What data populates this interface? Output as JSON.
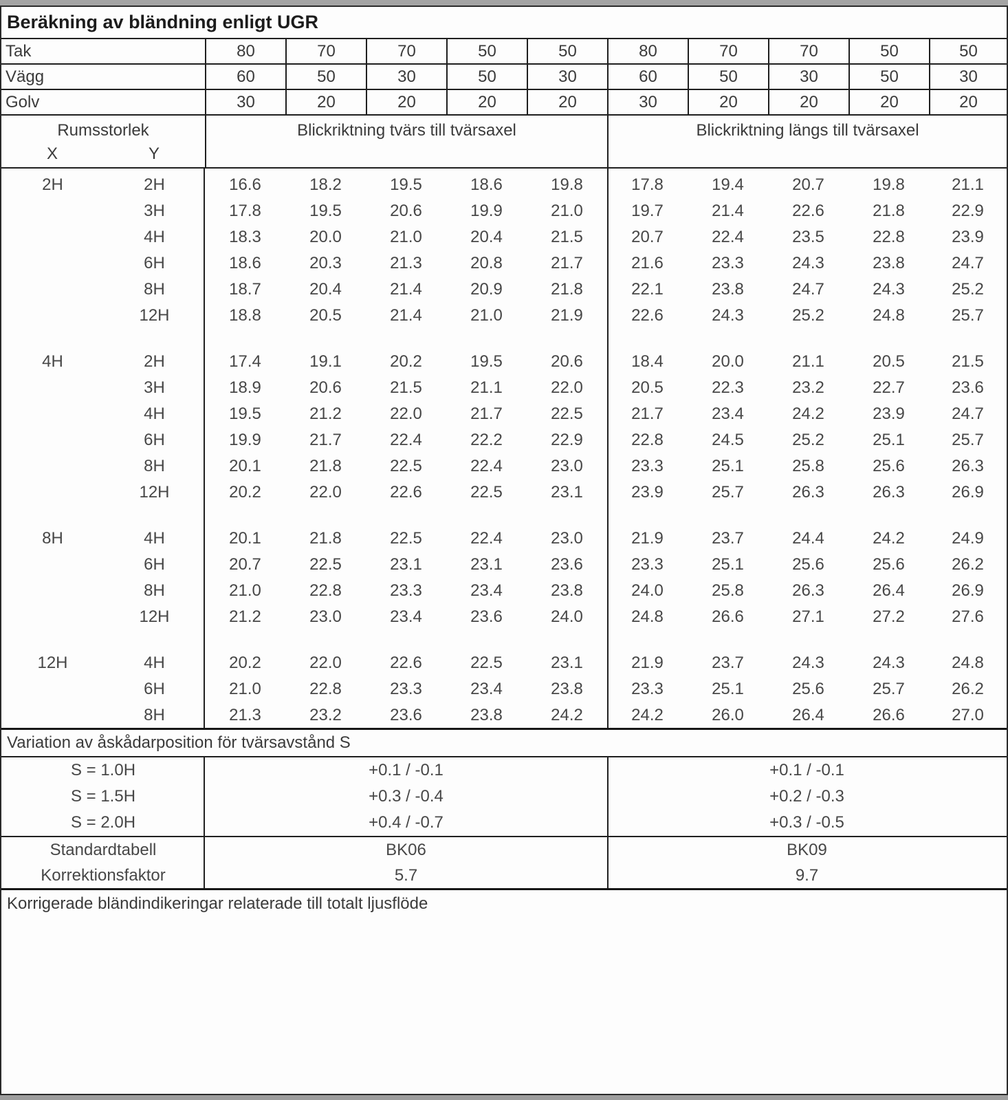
{
  "title": "Beräkning av bländning enligt UGR",
  "surface_rows": [
    {
      "label": "Tak",
      "values": [
        "80",
        "70",
        "70",
        "50",
        "50",
        "80",
        "70",
        "70",
        "50",
        "50"
      ]
    },
    {
      "label": "Vägg",
      "values": [
        "60",
        "50",
        "30",
        "50",
        "30",
        "60",
        "50",
        "30",
        "50",
        "30"
      ]
    },
    {
      "label": "Golv",
      "values": [
        "30",
        "20",
        "20",
        "20",
        "20",
        "30",
        "20",
        "20",
        "20",
        "20"
      ]
    }
  ],
  "room_header": {
    "label": "Rumsstorlek",
    "x": "X",
    "y": "Y",
    "group_tvars": "Blickriktning tvärs till tvärsaxel",
    "group_langs": "Blickriktning längs till tvärsaxel"
  },
  "ugr_blocks": [
    {
      "x": "2H",
      "rows": [
        {
          "y": "2H",
          "tvars": [
            "16.6",
            "18.2",
            "19.5",
            "18.6",
            "19.8"
          ],
          "langs": [
            "17.8",
            "19.4",
            "20.7",
            "19.8",
            "21.1"
          ]
        },
        {
          "y": "3H",
          "tvars": [
            "17.8",
            "19.5",
            "20.6",
            "19.9",
            "21.0"
          ],
          "langs": [
            "19.7",
            "21.4",
            "22.6",
            "21.8",
            "22.9"
          ]
        },
        {
          "y": "4H",
          "tvars": [
            "18.3",
            "20.0",
            "21.0",
            "20.4",
            "21.5"
          ],
          "langs": [
            "20.7",
            "22.4",
            "23.5",
            "22.8",
            "23.9"
          ]
        },
        {
          "y": "6H",
          "tvars": [
            "18.6",
            "20.3",
            "21.3",
            "20.8",
            "21.7"
          ],
          "langs": [
            "21.6",
            "23.3",
            "24.3",
            "23.8",
            "24.7"
          ]
        },
        {
          "y": "8H",
          "tvars": [
            "18.7",
            "20.4",
            "21.4",
            "20.9",
            "21.8"
          ],
          "langs": [
            "22.1",
            "23.8",
            "24.7",
            "24.3",
            "25.2"
          ]
        },
        {
          "y": "12H",
          "tvars": [
            "18.8",
            "20.5",
            "21.4",
            "21.0",
            "21.9"
          ],
          "langs": [
            "22.6",
            "24.3",
            "25.2",
            "24.8",
            "25.7"
          ]
        }
      ]
    },
    {
      "x": "4H",
      "rows": [
        {
          "y": "2H",
          "tvars": [
            "17.4",
            "19.1",
            "20.2",
            "19.5",
            "20.6"
          ],
          "langs": [
            "18.4",
            "20.0",
            "21.1",
            "20.5",
            "21.5"
          ]
        },
        {
          "y": "3H",
          "tvars": [
            "18.9",
            "20.6",
            "21.5",
            "21.1",
            "22.0"
          ],
          "langs": [
            "20.5",
            "22.3",
            "23.2",
            "22.7",
            "23.6"
          ]
        },
        {
          "y": "4H",
          "tvars": [
            "19.5",
            "21.2",
            "22.0",
            "21.7",
            "22.5"
          ],
          "langs": [
            "21.7",
            "23.4",
            "24.2",
            "23.9",
            "24.7"
          ]
        },
        {
          "y": "6H",
          "tvars": [
            "19.9",
            "21.7",
            "22.4",
            "22.2",
            "22.9"
          ],
          "langs": [
            "22.8",
            "24.5",
            "25.2",
            "25.1",
            "25.7"
          ]
        },
        {
          "y": "8H",
          "tvars": [
            "20.1",
            "21.8",
            "22.5",
            "22.4",
            "23.0"
          ],
          "langs": [
            "23.3",
            "25.1",
            "25.8",
            "25.6",
            "26.3"
          ]
        },
        {
          "y": "12H",
          "tvars": [
            "20.2",
            "22.0",
            "22.6",
            "22.5",
            "23.1"
          ],
          "langs": [
            "23.9",
            "25.7",
            "26.3",
            "26.3",
            "26.9"
          ]
        }
      ]
    },
    {
      "x": "8H",
      "rows": [
        {
          "y": "4H",
          "tvars": [
            "20.1",
            "21.8",
            "22.5",
            "22.4",
            "23.0"
          ],
          "langs": [
            "21.9",
            "23.7",
            "24.4",
            "24.2",
            "24.9"
          ]
        },
        {
          "y": "6H",
          "tvars": [
            "20.7",
            "22.5",
            "23.1",
            "23.1",
            "23.6"
          ],
          "langs": [
            "23.3",
            "25.1",
            "25.6",
            "25.6",
            "26.2"
          ]
        },
        {
          "y": "8H",
          "tvars": [
            "21.0",
            "22.8",
            "23.3",
            "23.4",
            "23.8"
          ],
          "langs": [
            "24.0",
            "25.8",
            "26.3",
            "26.4",
            "26.9"
          ]
        },
        {
          "y": "12H",
          "tvars": [
            "21.2",
            "23.0",
            "23.4",
            "23.6",
            "24.0"
          ],
          "langs": [
            "24.8",
            "26.6",
            "27.1",
            "27.2",
            "27.6"
          ]
        }
      ]
    },
    {
      "x": "12H",
      "rows": [
        {
          "y": "4H",
          "tvars": [
            "20.2",
            "22.0",
            "22.6",
            "22.5",
            "23.1"
          ],
          "langs": [
            "21.9",
            "23.7",
            "24.3",
            "24.3",
            "24.8"
          ]
        },
        {
          "y": "6H",
          "tvars": [
            "21.0",
            "22.8",
            "23.3",
            "23.4",
            "23.8"
          ],
          "langs": [
            "23.3",
            "25.1",
            "25.6",
            "25.7",
            "26.2"
          ]
        },
        {
          "y": "8H",
          "tvars": [
            "21.3",
            "23.2",
            "23.6",
            "23.8",
            "24.2"
          ],
          "langs": [
            "24.2",
            "26.0",
            "26.4",
            "26.6",
            "27.0"
          ]
        }
      ]
    }
  ],
  "variation": {
    "header": "Variation av åskådarposition för tvärsavstånd S",
    "rows": [
      {
        "label": "S = 1.0H",
        "tvars": "+0.1 / -0.1",
        "langs": "+0.1 / -0.1"
      },
      {
        "label": "S = 1.5H",
        "tvars": "+0.3 / -0.4",
        "langs": "+0.2 / -0.3"
      },
      {
        "label": "S = 2.0H",
        "tvars": "+0.4 / -0.7",
        "langs": "+0.3 / -0.5"
      }
    ]
  },
  "standard": {
    "rows": [
      {
        "label": "Standardtabell",
        "tvars": "BK06",
        "langs": "BK09"
      },
      {
        "label": "Korrektionsfaktor",
        "tvars": "5.7",
        "langs": "9.7"
      }
    ]
  },
  "footer": "Korrigerade bländindikeringar relaterade till totalt ljusflöde",
  "colors": {
    "border": "#1f1f1f",
    "thick_border": "#161616",
    "window_bar": "#a4a4a4",
    "text": "#3b3b3b",
    "background": "#fdfdfd"
  }
}
